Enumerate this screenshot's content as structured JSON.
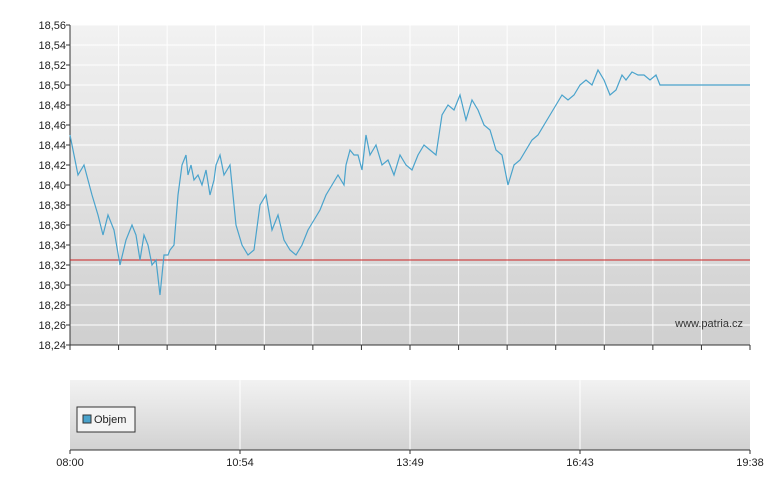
{
  "chart_data": [
    {
      "type": "line",
      "title": "",
      "xlabel": "",
      "ylabel": "",
      "ylim": [
        18.24,
        18.56
      ],
      "y_ticks": [
        "18,56",
        "18,54",
        "18,52",
        "18,50",
        "18,48",
        "18,46",
        "18,44",
        "18,42",
        "18,40",
        "18,38",
        "18,36",
        "18,34",
        "18,32",
        "18,30",
        "18,28",
        "18,26",
        "18,24"
      ],
      "reference_line": 18.325,
      "watermark": "www.patria.cz",
      "grid": true,
      "series_color": "#4aa3cc",
      "reference_color": "#cc2222",
      "series": [
        {
          "name": "",
          "x": [
            0,
            8,
            14,
            22,
            28,
            33,
            38,
            44,
            50,
            56,
            62,
            66,
            70,
            74,
            78,
            82,
            86,
            90,
            94,
            98,
            100,
            104,
            108,
            112,
            116,
            118,
            121,
            124,
            128,
            132,
            136,
            140,
            144,
            146,
            150,
            154,
            160,
            166,
            172,
            178,
            184,
            190,
            196,
            202,
            208,
            214,
            220,
            226,
            232,
            238,
            244,
            250,
            256,
            262,
            268,
            274,
            276,
            280,
            284,
            288,
            292,
            296,
            300,
            306,
            312,
            318,
            324,
            330,
            336,
            342,
            348,
            354,
            360,
            366,
            372,
            378,
            384,
            390,
            396,
            402,
            408,
            414,
            420,
            426,
            432,
            438,
            444,
            450,
            456,
            462,
            468,
            474,
            480,
            486,
            492,
            498,
            504,
            510,
            516,
            522,
            528,
            534,
            540,
            546,
            552,
            556,
            562,
            568,
            574,
            580,
            586,
            590,
            596,
            602,
            608,
            614,
            618,
            622,
            626,
            632,
            638,
            644,
            650,
            656,
            658,
            664,
            670,
            676,
            680
          ],
          "values": [
            18.45,
            18.41,
            18.42,
            18.39,
            18.37,
            18.35,
            18.37,
            18.355,
            18.32,
            18.345,
            18.36,
            18.35,
            18.325,
            18.35,
            18.34,
            18.32,
            18.325,
            18.29,
            18.33,
            18.33,
            18.335,
            18.34,
            18.39,
            18.42,
            18.43,
            18.41,
            18.42,
            18.405,
            18.41,
            18.4,
            18.415,
            18.39,
            18.405,
            18.42,
            18.43,
            18.41,
            18.42,
            18.36,
            18.34,
            18.33,
            18.335,
            18.38,
            18.39,
            18.355,
            18.37,
            18.345,
            18.335,
            18.33,
            18.34,
            18.355,
            18.365,
            18.375,
            18.39,
            18.4,
            18.41,
            18.4,
            18.42,
            18.435,
            18.43,
            18.43,
            18.415,
            18.45,
            18.43,
            18.44,
            18.42,
            18.425,
            18.41,
            18.43,
            18.42,
            18.415,
            18.43,
            18.44,
            18.435,
            18.43,
            18.47,
            18.48,
            18.475,
            18.49,
            18.465,
            18.485,
            18.475,
            18.46,
            18.455,
            18.435,
            18.43,
            18.4,
            18.42,
            18.425,
            18.435,
            18.445,
            18.45,
            18.46,
            18.47,
            18.48,
            18.49,
            18.485,
            18.49,
            18.5,
            18.505,
            18.5,
            18.515,
            18.505,
            18.49,
            18.495,
            18.51,
            18.505,
            18.513,
            18.51,
            18.51,
            18.505,
            18.51,
            18.5,
            18.5,
            18.5,
            18.5,
            18.5,
            18.5,
            18.5,
            18.5,
            18.5,
            18.5,
            18.5,
            18.5,
            18.5,
            18.5,
            18.5,
            18.5,
            18.5,
            18.5
          ]
        }
      ],
      "x_ticks": [
        "08:00",
        "10:54",
        "13:49",
        "16:43",
        "19:38"
      ]
    },
    {
      "type": "bar",
      "title": "",
      "legend": [
        {
          "label": "Objem",
          "color": "#4aa3cc"
        }
      ],
      "x_ticks": [
        "08:00",
        "10:54",
        "13:49",
        "16:43",
        "19:38"
      ]
    }
  ]
}
